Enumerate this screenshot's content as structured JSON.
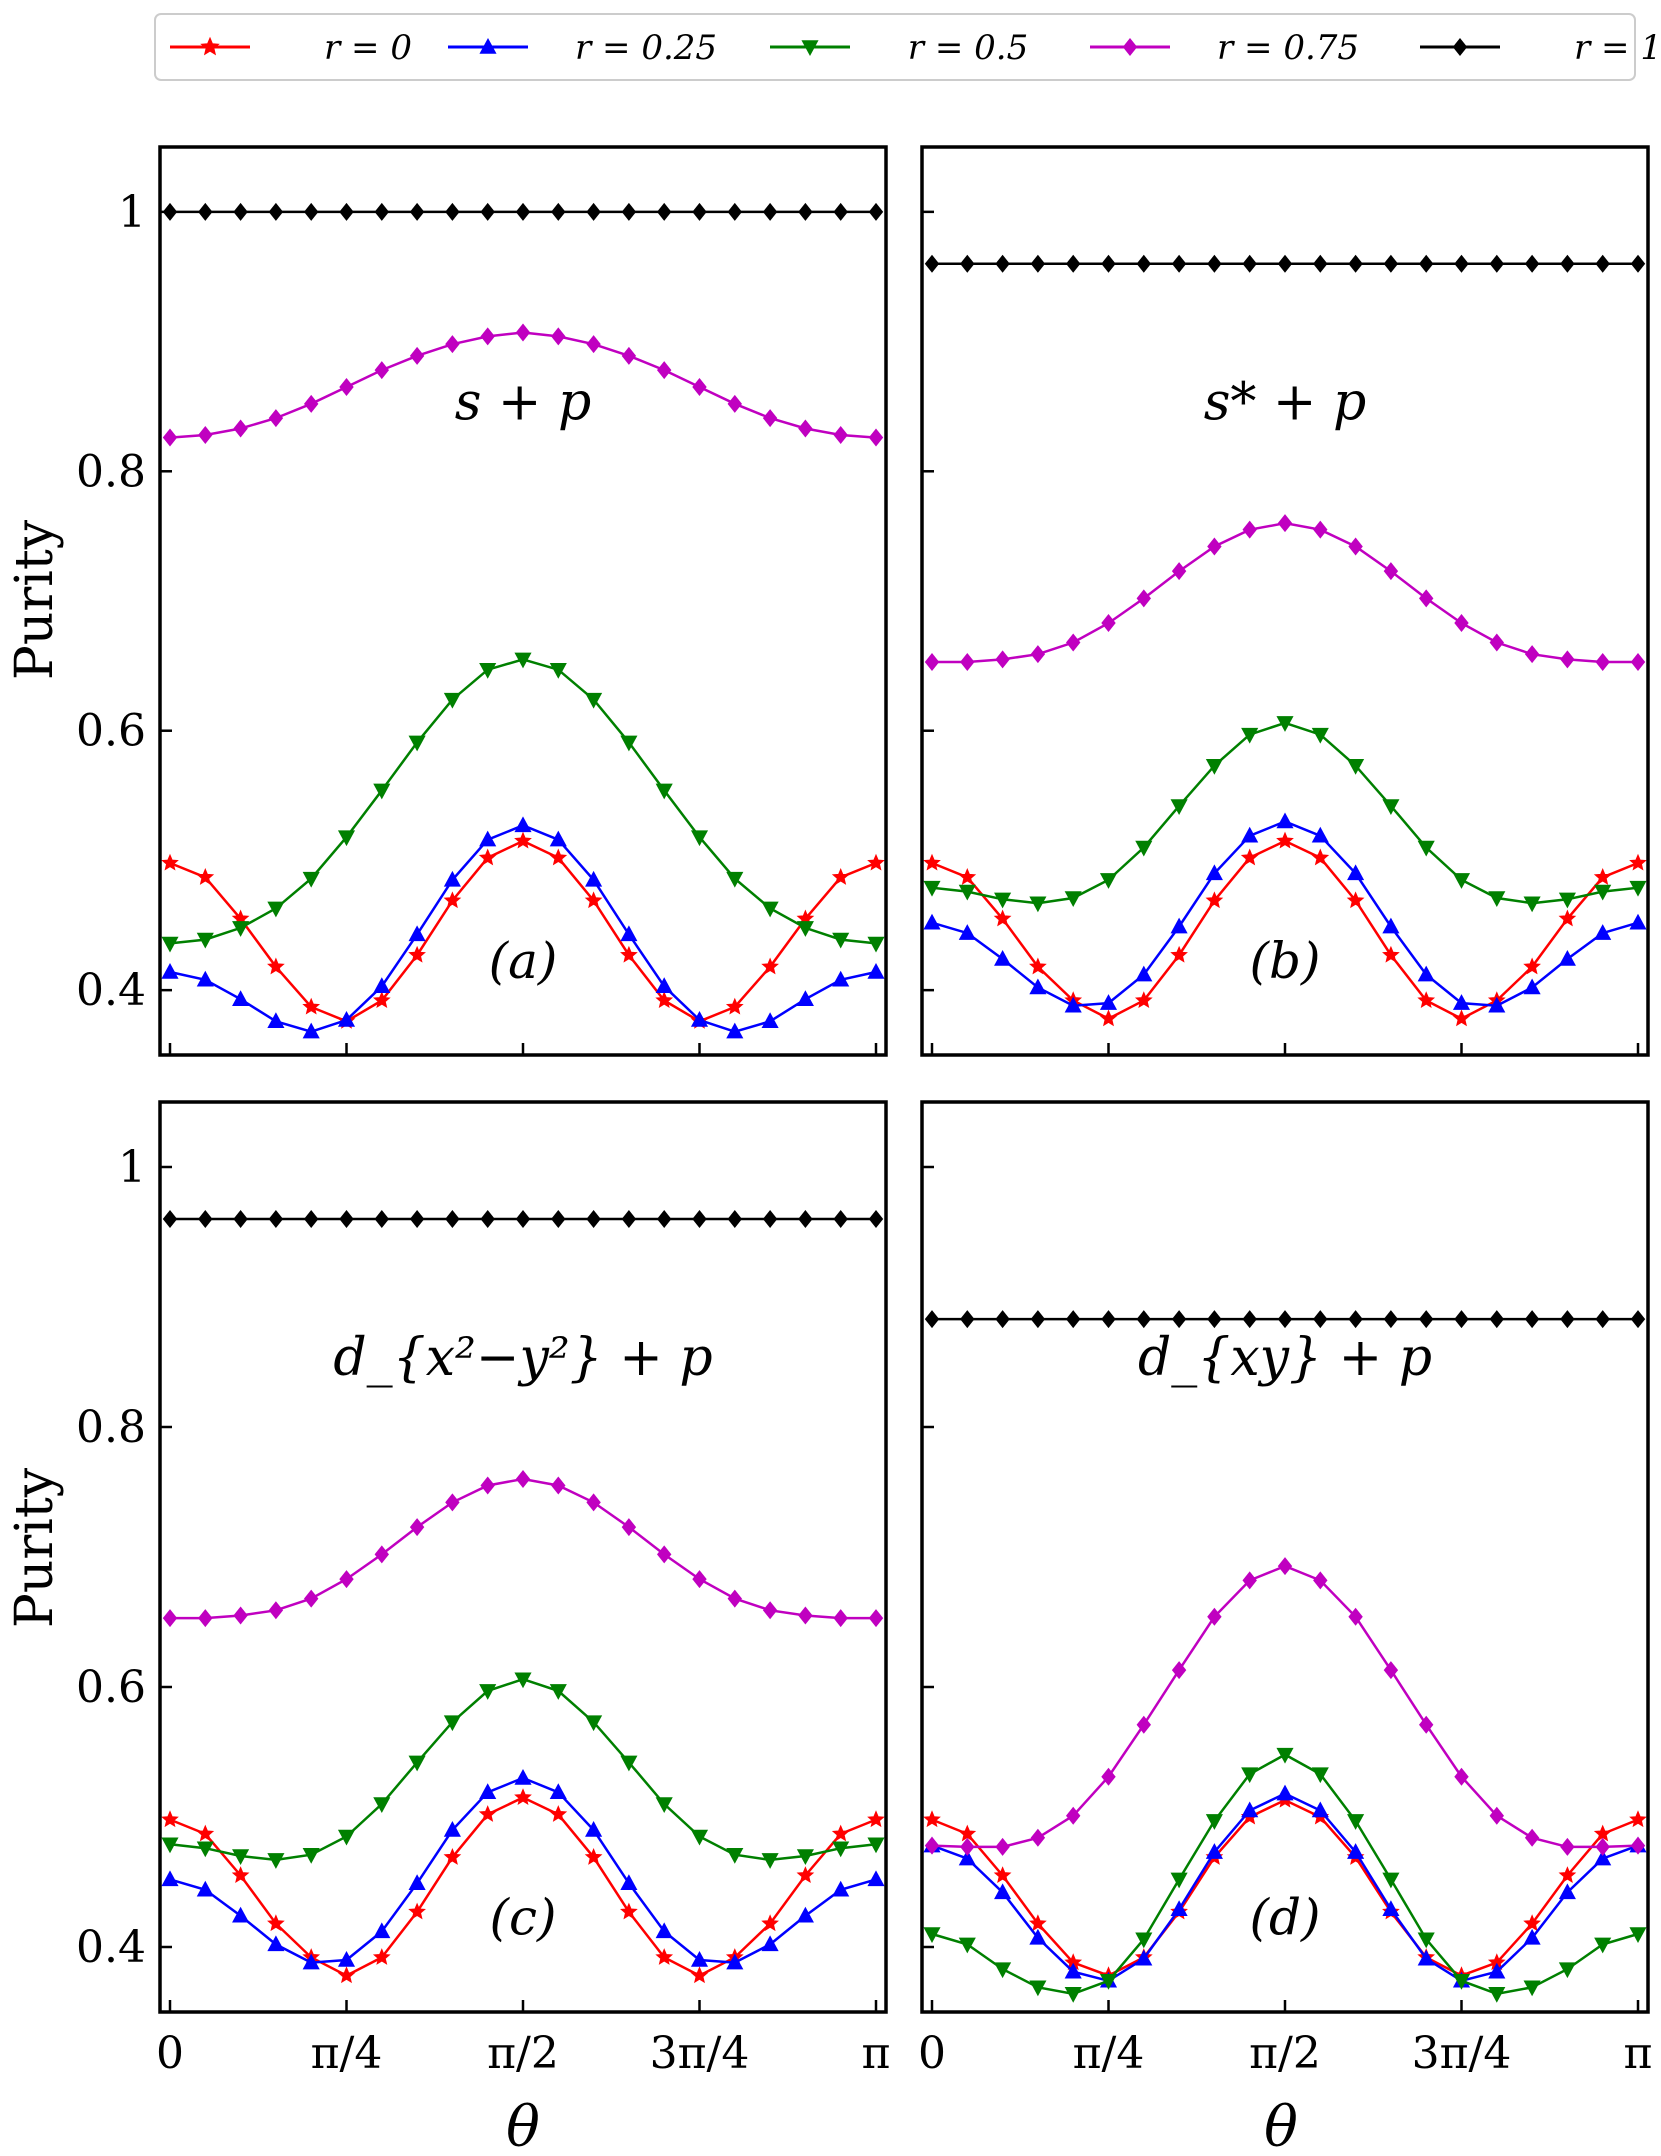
{
  "chart_data": {
    "type": "line",
    "ylabel": "Purity",
    "xlabel": "θ",
    "x_ticks": [
      "0",
      "π/4",
      "π/2",
      "3π/4",
      "π"
    ],
    "y_ticks": [
      "0.4",
      "0.6",
      "0.8",
      "1"
    ],
    "xlim": [
      0,
      3.14159
    ],
    "ylim": [
      0.35,
      1.05
    ],
    "legend": [
      "r = 0",
      "r = 0.25",
      "r = 0.5",
      "r = 0.75",
      "r = 1"
    ],
    "series_styles": [
      {
        "name": "r = 0",
        "color": "#ff0000",
        "marker": "star"
      },
      {
        "name": "r = 0.25",
        "color": "#0000ff",
        "marker": "triangle-up"
      },
      {
        "name": "r = 0.5",
        "color": "#008000",
        "marker": "triangle-down"
      },
      {
        "name": "r = 0.75",
        "color": "#c000c0",
        "marker": "diamond"
      },
      {
        "name": "r = 1",
        "color": "#000000",
        "marker": "diamond"
      }
    ],
    "panels": [
      {
        "title": "s + p",
        "label": "(a)",
        "series": [
          {
            "name": "r = 0",
            "values": [
              0.498,
              0.487,
              0.455,
              0.418,
              0.387,
              0.376,
              0.392,
              0.427,
              0.469,
              0.502,
              0.515,
              0.502,
              0.469,
              0.427,
              0.392,
              0.376,
              0.387,
              0.418,
              0.455,
              0.487,
              0.498
            ]
          },
          {
            "name": "r = 0.25",
            "values": [
              0.414,
              0.408,
              0.393,
              0.376,
              0.368,
              0.377,
              0.403,
              0.443,
              0.485,
              0.516,
              0.527,
              0.516,
              0.485,
              0.443,
              0.403,
              0.377,
              0.368,
              0.376,
              0.393,
              0.408,
              0.414
            ]
          },
          {
            "name": "r = 0.5",
            "values": [
              0.436,
              0.439,
              0.448,
              0.463,
              0.486,
              0.518,
              0.554,
              0.591,
              0.624,
              0.647,
              0.655,
              0.647,
              0.624,
              0.591,
              0.554,
              0.518,
              0.486,
              0.463,
              0.448,
              0.439,
              0.436
            ]
          },
          {
            "name": "r = 0.75",
            "values": [
              0.826,
              0.828,
              0.833,
              0.841,
              0.852,
              0.865,
              0.878,
              0.889,
              0.898,
              0.904,
              0.907,
              0.904,
              0.898,
              0.889,
              0.878,
              0.865,
              0.852,
              0.841,
              0.833,
              0.828,
              0.826
            ]
          },
          {
            "name": "r = 1",
            "values": [
              1,
              1,
              1,
              1,
              1,
              1,
              1,
              1,
              1,
              1,
              1,
              1,
              1,
              1,
              1,
              1,
              1,
              1,
              1,
              1,
              1
            ]
          }
        ]
      },
      {
        "title": "s* + p",
        "label": "(b)",
        "series": [
          {
            "name": "r = 0",
            "values": [
              0.498,
              0.487,
              0.455,
              0.418,
              0.392,
              0.378,
              0.392,
              0.427,
              0.469,
              0.502,
              0.515,
              0.502,
              0.469,
              0.427,
              0.392,
              0.378,
              0.392,
              0.418,
              0.455,
              0.487,
              0.498
            ]
          },
          {
            "name": "r = 0.25",
            "values": [
              0.452,
              0.444,
              0.424,
              0.402,
              0.388,
              0.39,
              0.412,
              0.449,
              0.49,
              0.519,
              0.53,
              0.519,
              0.49,
              0.449,
              0.412,
              0.39,
              0.388,
              0.402,
              0.424,
              0.444,
              0.452
            ]
          },
          {
            "name": "r = 0.5",
            "values": [
              0.479,
              0.476,
              0.47,
              0.467,
              0.471,
              0.485,
              0.51,
              0.542,
              0.573,
              0.597,
              0.606,
              0.597,
              0.573,
              0.542,
              0.51,
              0.485,
              0.471,
              0.467,
              0.47,
              0.476,
              0.479
            ]
          },
          {
            "name": "r = 0.75",
            "values": [
              0.653,
              0.653,
              0.655,
              0.659,
              0.668,
              0.683,
              0.702,
              0.723,
              0.742,
              0.755,
              0.76,
              0.755,
              0.742,
              0.723,
              0.702,
              0.683,
              0.668,
              0.659,
              0.655,
              0.653,
              0.653
            ]
          },
          {
            "name": "r = 1",
            "values": [
              0.96,
              0.96,
              0.96,
              0.96,
              0.96,
              0.96,
              0.96,
              0.96,
              0.96,
              0.96,
              0.96,
              0.96,
              0.96,
              0.96,
              0.96,
              0.96,
              0.96,
              0.96,
              0.96,
              0.96,
              0.96
            ]
          }
        ]
      },
      {
        "title": "d_{x²−y²} + p",
        "label": "(c)",
        "series": [
          {
            "name": "r = 0",
            "values": [
              0.498,
              0.487,
              0.455,
              0.418,
              0.392,
              0.378,
              0.392,
              0.427,
              0.469,
              0.502,
              0.515,
              0.502,
              0.469,
              0.427,
              0.392,
              0.378,
              0.392,
              0.418,
              0.455,
              0.487,
              0.498
            ]
          },
          {
            "name": "r = 0.25",
            "values": [
              0.452,
              0.444,
              0.424,
              0.402,
              0.388,
              0.39,
              0.412,
              0.449,
              0.49,
              0.519,
              0.53,
              0.519,
              0.49,
              0.449,
              0.412,
              0.39,
              0.388,
              0.402,
              0.424,
              0.444,
              0.452
            ]
          },
          {
            "name": "r = 0.5",
            "values": [
              0.479,
              0.476,
              0.47,
              0.467,
              0.471,
              0.485,
              0.51,
              0.542,
              0.573,
              0.597,
              0.606,
              0.597,
              0.573,
              0.542,
              0.51,
              0.485,
              0.471,
              0.467,
              0.47,
              0.476,
              0.479
            ]
          },
          {
            "name": "r = 0.75",
            "values": [
              0.653,
              0.653,
              0.655,
              0.659,
              0.668,
              0.683,
              0.702,
              0.723,
              0.742,
              0.755,
              0.76,
              0.755,
              0.742,
              0.723,
              0.702,
              0.683,
              0.668,
              0.659,
              0.655,
              0.653,
              0.653
            ]
          },
          {
            "name": "r = 1",
            "values": [
              0.96,
              0.96,
              0.96,
              0.96,
              0.96,
              0.96,
              0.96,
              0.96,
              0.96,
              0.96,
              0.96,
              0.96,
              0.96,
              0.96,
              0.96,
              0.96,
              0.96,
              0.96,
              0.96,
              0.96,
              0.96
            ]
          }
        ]
      },
      {
        "title": "d_{xy} + p",
        "label": "(d)",
        "series": [
          {
            "name": "r = 0",
            "values": [
              0.498,
              0.487,
              0.455,
              0.418,
              0.388,
              0.378,
              0.392,
              0.427,
              0.469,
              0.5,
              0.513,
              0.5,
              0.469,
              0.427,
              0.392,
              0.378,
              0.388,
              0.418,
              0.455,
              0.487,
              0.498
            ]
          },
          {
            "name": "r = 0.25",
            "values": [
              0.478,
              0.468,
              0.442,
              0.407,
              0.381,
              0.374,
              0.391,
              0.429,
              0.473,
              0.505,
              0.518,
              0.505,
              0.473,
              0.429,
              0.391,
              0.374,
              0.381,
              0.407,
              0.442,
              0.468,
              0.478
            ]
          },
          {
            "name": "r = 0.5",
            "values": [
              0.41,
              0.402,
              0.383,
              0.369,
              0.364,
              0.374,
              0.406,
              0.452,
              0.497,
              0.533,
              0.548,
              0.533,
              0.497,
              0.452,
              0.406,
              0.374,
              0.364,
              0.369,
              0.383,
              0.402,
              0.41
            ]
          },
          {
            "name": "r = 0.75",
            "values": [
              0.478,
              0.477,
              0.477,
              0.484,
              0.501,
              0.531,
              0.571,
              0.613,
              0.654,
              0.682,
              0.693,
              0.682,
              0.654,
              0.613,
              0.571,
              0.531,
              0.501,
              0.484,
              0.477,
              0.477,
              0.478
            ]
          },
          {
            "name": "r = 1",
            "values": [
              0.883,
              0.883,
              0.883,
              0.883,
              0.883,
              0.883,
              0.883,
              0.883,
              0.883,
              0.883,
              0.883,
              0.883,
              0.883,
              0.883,
              0.883,
              0.883,
              0.883,
              0.883,
              0.883,
              0.883,
              0.883
            ]
          }
        ]
      }
    ]
  }
}
